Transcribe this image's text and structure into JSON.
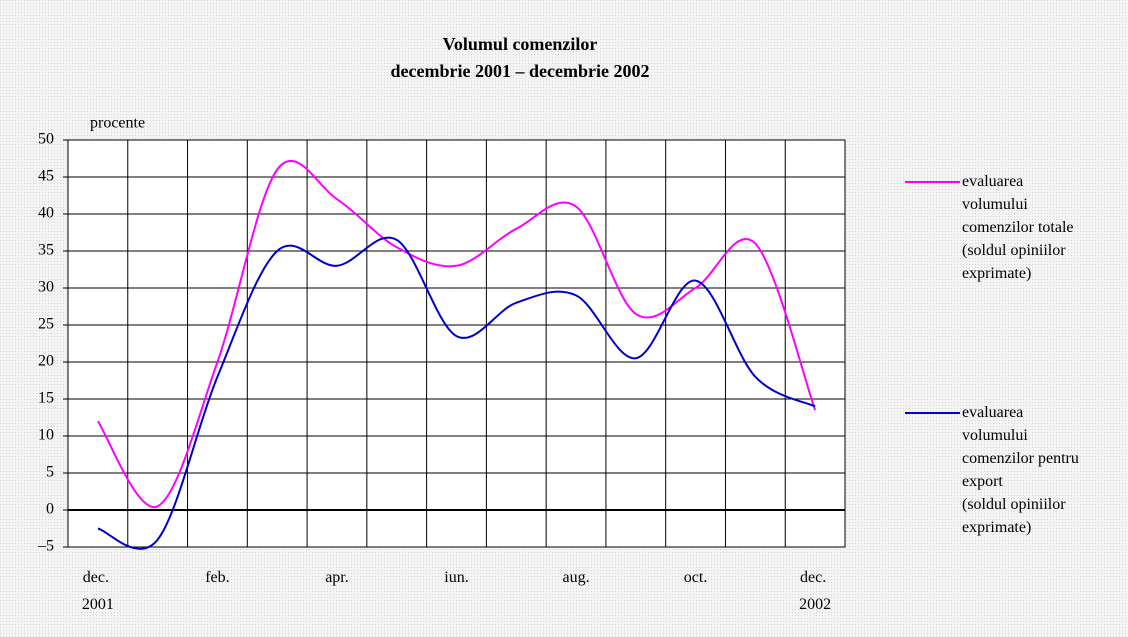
{
  "chart_data": {
    "type": "line",
    "title": "Volumul comenzilor",
    "subtitle": "decembrie 2001 – decembrie 2002",
    "y_label": "procente",
    "categories": [
      "dec. 2001",
      null,
      "feb.",
      null,
      "apr.",
      null,
      "iun.",
      null,
      "aug.",
      null,
      "oct.",
      null,
      "dec. 2002"
    ],
    "series": [
      {
        "name": "evaluarea volumului comenzilor totale (soldul opiniilor exprimate)",
        "color": "#ff00ff",
        "values": [
          12,
          0.5,
          20,
          46,
          42,
          35.5,
          33,
          38,
          41,
          26.5,
          30,
          36,
          13.5
        ]
      },
      {
        "name": "evaluarea volumului comenzilor pentru export (soldul opiniilor exprimate)",
        "color": "#0000cc",
        "values": [
          -2.5,
          -4,
          18,
          35,
          33,
          36.5,
          23.5,
          28,
          29,
          20.5,
          31,
          18,
          14
        ]
      }
    ],
    "ylim": [
      -5,
      50
    ],
    "yticks": [
      {
        "value": -5,
        "label": "–5"
      },
      0,
      5,
      10,
      15,
      20,
      25,
      30,
      35,
      40,
      45,
      50
    ],
    "grid": true
  }
}
